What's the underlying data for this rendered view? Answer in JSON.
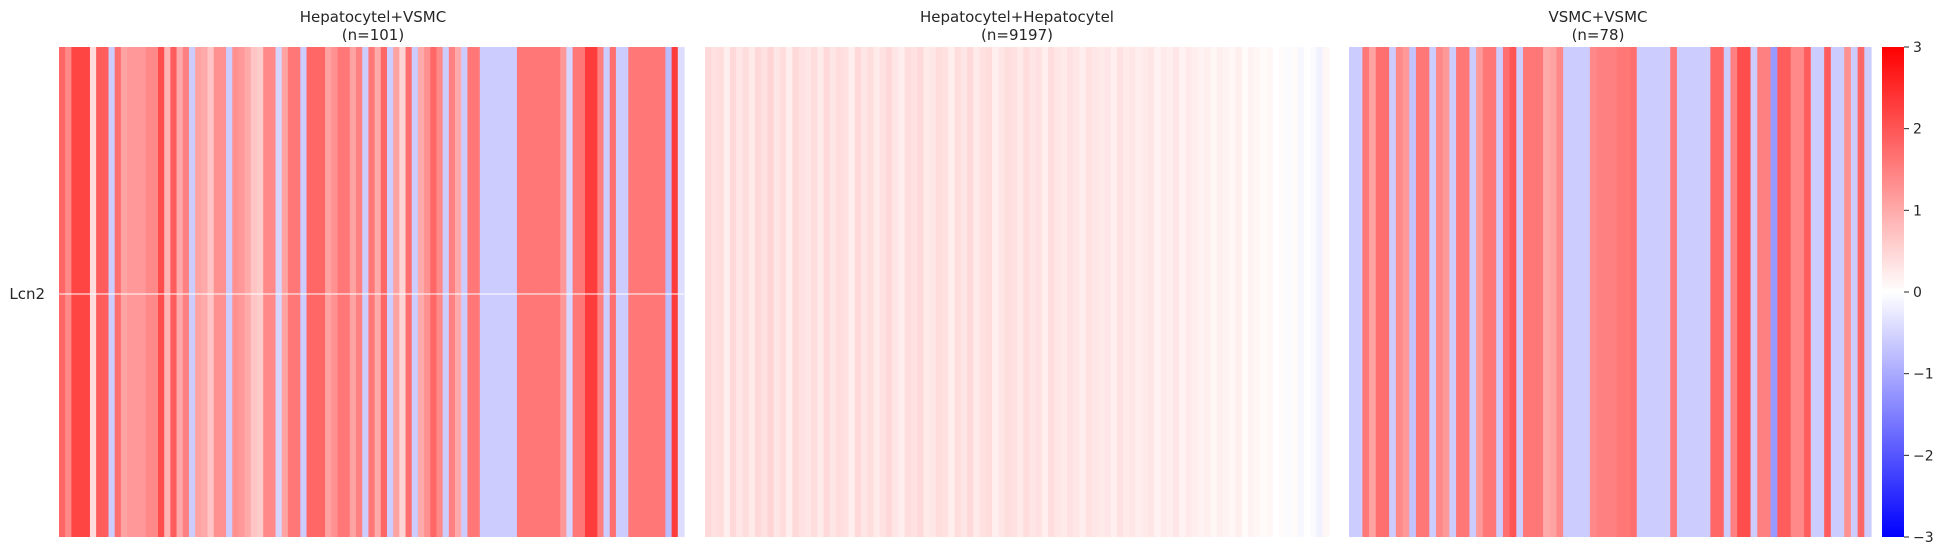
{
  "chart_data": {
    "type": "heatmap",
    "row_labels": [
      "Lcn2"
    ],
    "colorbar": {
      "min": -3,
      "max": 3,
      "ticks": [
        3,
        2,
        1,
        0,
        -1,
        -2,
        -3
      ],
      "tick_labels": [
        "3",
        "2",
        "1",
        "0",
        "−1",
        "−2",
        "−3"
      ],
      "colormap": "bwr",
      "colors": {
        "low": "#0000ff",
        "mid": "#ffffff",
        "high": "#ff0000"
      }
    },
    "panels": [
      {
        "title": "Hepatocytel+VSMC",
        "count_label": "(n=101)",
        "values": [
          1.8,
          1.4,
          2.2,
          2.2,
          2.2,
          0.4,
          1.9,
          1.9,
          -0.6,
          1.7,
          1.1,
          1.2,
          1.2,
          1.2,
          1.4,
          1.4,
          2.1,
          0.9,
          1.9,
          1.0,
          1.5,
          -0.6,
          1.1,
          1.0,
          0.7,
          1.3,
          1.3,
          -0.6,
          1.3,
          1.2,
          1.0,
          0.7,
          0.6,
          1.4,
          1.4,
          -0.5,
          1.1,
          1.6,
          1.6,
          -0.6,
          1.8,
          1.8,
          1.8,
          1.1,
          1.3,
          1.6,
          1.6,
          1.1,
          1.5,
          -0.6,
          1.6,
          1.0,
          1.8,
          -0.6,
          1.1,
          0.5,
          1.7,
          -0.6,
          1.0,
          1.3,
          1.8,
          1.4,
          -0.6,
          1.5,
          1.0,
          -0.6,
          1.6,
          1.6,
          -0.6,
          -0.6,
          -0.6,
          -0.6,
          -0.6,
          -0.6,
          1.6,
          1.6,
          1.6,
          1.6,
          1.6,
          1.6,
          1.6,
          1.2,
          -0.5,
          1.6,
          1.6,
          2.3,
          2.3,
          1.5,
          -0.6,
          1.7,
          -0.6,
          -0.6,
          1.6,
          1.6,
          1.6,
          1.6,
          1.6,
          1.6,
          -0.8,
          2.3,
          -0.4
        ]
      },
      {
        "title": "Hepatocytel+Hepatocytel",
        "count_label": "(n=9197)",
        "values": [
          0.45,
          0.35,
          0.4,
          0.2,
          0.45,
          0.3,
          0.4,
          0.25,
          0.45,
          0.35,
          0.5,
          0.3,
          0.4,
          0.2,
          0.45,
          0.35,
          0.3,
          0.4,
          0.25,
          0.45,
          0.3,
          0.4,
          0.35,
          0.2,
          0.45,
          0.3,
          0.4,
          0.25,
          0.35,
          0.45,
          0.3,
          0.2,
          0.4,
          0.35,
          0.45,
          0.25,
          0.3,
          0.4,
          0.35,
          0.2,
          0.4,
          0.3,
          0.45,
          0.25,
          0.35,
          0.4,
          0.2,
          0.3,
          0.4,
          0.35,
          0.25,
          0.4,
          0.3,
          0.35,
          0.2,
          0.4,
          0.3,
          0.25,
          0.35,
          0.3,
          0.2,
          0.35,
          0.3,
          0.25,
          0.3,
          0.2,
          0.35,
          0.25,
          0.3,
          0.2,
          0.25,
          0.3,
          0.15,
          0.25,
          0.2,
          0.3,
          0.15,
          0.25,
          0.2,
          0.15,
          0.2,
          0.1,
          0.2,
          0.15,
          0.1,
          0.2,
          0.05,
          0.15,
          0.1,
          0.05,
          0.1,
          0.0,
          0.05,
          -0.05,
          0.05,
          -0.1,
          0.0,
          -0.05,
          -0.15,
          0.1
        ]
      },
      {
        "title": "VSMC+VSMC",
        "count_label": "(n=78)",
        "values": [
          -0.6,
          -0.6,
          1.6,
          1.1,
          1.7,
          1.7,
          -0.6,
          1.4,
          1.2,
          -0.7,
          1.6,
          1.6,
          -0.6,
          1.4,
          1.2,
          -0.6,
          1.6,
          1.6,
          -0.6,
          1.2,
          1.6,
          1.6,
          -0.6,
          1.7,
          2.0,
          -0.6,
          1.6,
          1.6,
          1.6,
          1.0,
          1.1,
          1.4,
          -0.6,
          -0.6,
          -0.6,
          -0.6,
          1.4,
          1.5,
          1.5,
          1.5,
          1.6,
          1.6,
          1.7,
          -0.6,
          -0.6,
          -0.6,
          -0.6,
          -0.6,
          1.6,
          -0.6,
          -0.6,
          -0.6,
          -0.6,
          -0.6,
          1.8,
          1.8,
          -0.6,
          1.5,
          2.1,
          2.1,
          -0.6,
          1.5,
          1.5,
          -1.2,
          1.9,
          1.9,
          1.4,
          1.4,
          1.9,
          -0.6,
          -0.6,
          1.9,
          -0.6,
          -0.6,
          1.3,
          -0.6,
          1.8,
          -0.6
        ]
      }
    ]
  }
}
